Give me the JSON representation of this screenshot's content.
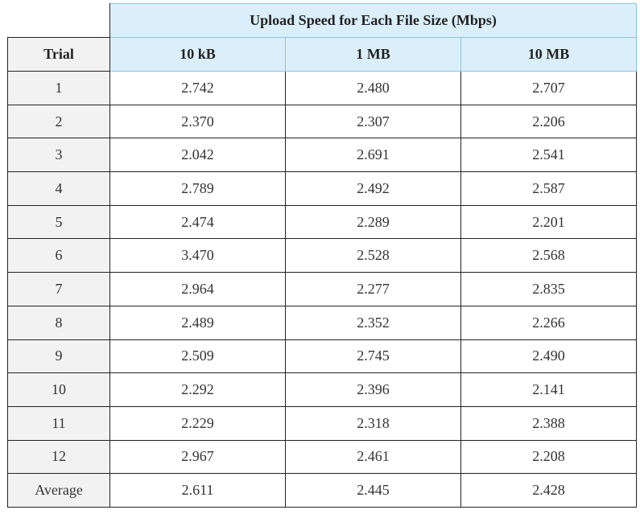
{
  "table": {
    "group_header": "Upload Speed for Each File Size (Mbps)",
    "columns": [
      "Trial",
      "10 kB",
      "1 MB",
      "10 MB"
    ],
    "rows": [
      [
        "1",
        "2.742",
        "2.480",
        "2.707"
      ],
      [
        "2",
        "2.370",
        "2.307",
        "2.206"
      ],
      [
        "3",
        "2.042",
        "2.691",
        "2.541"
      ],
      [
        "4",
        "2.789",
        "2.492",
        "2.587"
      ],
      [
        "5",
        "2.474",
        "2.289",
        "2.201"
      ],
      [
        "6",
        "3.470",
        "2.528",
        "2.568"
      ],
      [
        "7",
        "2.964",
        "2.277",
        "2.835"
      ],
      [
        "8",
        "2.489",
        "2.352",
        "2.266"
      ],
      [
        "9",
        "2.509",
        "2.745",
        "2.490"
      ],
      [
        "10",
        "2.292",
        "2.396",
        "2.141"
      ],
      [
        "11",
        "2.229",
        "2.318",
        "2.388"
      ],
      [
        "12",
        "2.967",
        "2.461",
        "2.208"
      ],
      [
        "Average",
        "2.611",
        "2.445",
        "2.428"
      ]
    ]
  }
}
